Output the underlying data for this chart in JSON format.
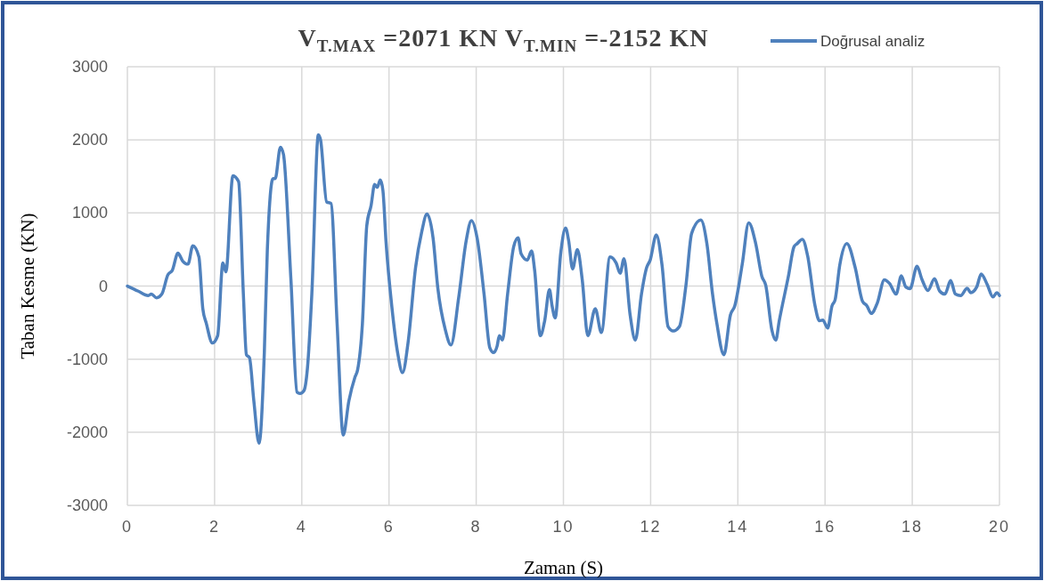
{
  "chart_data": {
    "type": "line",
    "title": "V$_{T.MAX}$ =2071 KN  V$_{T.MIN}$ =-2152 KN",
    "xlabel": "Zaman (S)",
    "ylabel": "Taban Kesme (KN)",
    "xlim": [
      0,
      20
    ],
    "xticks": [
      0,
      2,
      4,
      6,
      8,
      10,
      12,
      14,
      16,
      18,
      20
    ],
    "ylim": [
      -3000,
      3000
    ],
    "yticks": [
      -3000,
      -2000,
      -1000,
      0,
      1000,
      2000,
      3000
    ],
    "grid": true,
    "legend": "top right",
    "series": [
      {
        "name": "Doğrusal analiz",
        "color": "#4f81bd",
        "x": [
          0,
          0.25,
          0.48,
          0.55,
          0.67,
          0.79,
          0.93,
          1.03,
          1.16,
          1.27,
          1.39,
          1.5,
          1.64,
          1.73,
          1.81,
          1.95,
          2.07,
          2.19,
          2.26,
          2.42,
          2.55,
          2.66,
          2.73,
          2.8,
          2.9,
          3.02,
          3.14,
          3.21,
          3.34,
          3.39,
          3.51,
          3.58,
          3.75,
          3.89,
          3.96,
          4.05,
          4.13,
          4.23,
          4.38,
          4.43,
          4.57,
          4.67,
          4.81,
          4.95,
          5.08,
          5.22,
          5.28,
          5.39,
          5.49,
          5.59,
          5.67,
          5.73,
          5.8,
          5.86,
          5.93,
          6.07,
          6.2,
          6.31,
          6.44,
          6.61,
          6.75,
          6.87,
          7.01,
          7.12,
          7.29,
          7.42,
          7.6,
          7.77,
          7.89,
          8.02,
          8.18,
          8.31,
          8.4,
          8.48,
          8.53,
          8.6,
          8.72,
          8.86,
          8.96,
          9.03,
          9.17,
          9.27,
          9.34,
          9.47,
          9.57,
          9.68,
          9.74,
          9.81,
          9.94,
          10.05,
          10.12,
          10.21,
          10.32,
          10.43,
          10.56,
          10.73,
          10.87,
          11.07,
          11.21,
          11.3,
          11.39,
          11.53,
          11.65,
          11.79,
          11.91,
          11.99,
          12.13,
          12.26,
          12.4,
          12.52,
          12.66,
          12.81,
          12.94,
          13.15,
          13.29,
          13.42,
          13.52,
          13.68,
          13.83,
          13.93,
          14.1,
          14.25,
          14.41,
          14.55,
          14.64,
          14.78,
          14.87,
          14.95,
          15.16,
          15.29,
          15.36,
          15.48,
          15.6,
          15.77,
          15.87,
          15.95,
          16.06,
          16.16,
          16.23,
          16.34,
          16.5,
          16.69,
          16.86,
          16.96,
          17.06,
          17.2,
          17.36,
          17.48,
          17.63,
          17.75,
          17.85,
          17.95,
          18.11,
          18.22,
          18.36,
          18.51,
          18.63,
          18.75,
          18.88,
          18.99,
          19.11,
          19.26,
          19.34,
          19.48,
          19.58,
          19.72,
          19.85,
          19.94,
          20
        ],
        "values": [
          0,
          -70,
          -130,
          -110,
          -160,
          -110,
          155,
          215,
          450,
          340,
          300,
          550,
          400,
          -310,
          -510,
          -780,
          -680,
          315,
          195,
          1510,
          1430,
          -110,
          -940,
          -980,
          -1570,
          -2150,
          -920,
          500,
          1470,
          1470,
          1900,
          1800,
          95,
          -1450,
          -1470,
          -1430,
          -1120,
          -110,
          2070,
          2000,
          1150,
          1130,
          -515,
          -2040,
          -1570,
          -1245,
          -1145,
          -515,
          825,
          1105,
          1390,
          1350,
          1450,
          1310,
          620,
          -310,
          -920,
          -1185,
          -760,
          255,
          740,
          985,
          660,
          -30,
          -595,
          -805,
          -150,
          620,
          895,
          660,
          -110,
          -840,
          -910,
          -820,
          -680,
          -740,
          -110,
          540,
          660,
          440,
          355,
          480,
          215,
          -680,
          -475,
          -50,
          -270,
          -435,
          460,
          795,
          620,
          235,
          500,
          95,
          -680,
          -310,
          -635,
          400,
          315,
          175,
          375,
          -395,
          -740,
          -110,
          255,
          355,
          700,
          295,
          -555,
          -615,
          -555,
          10,
          720,
          905,
          580,
          -110,
          -515,
          -940,
          -395,
          -270,
          295,
          865,
          580,
          135,
          10,
          -600,
          -740,
          -475,
          135,
          540,
          580,
          640,
          415,
          -270,
          -475,
          -465,
          -575,
          -270,
          -190,
          295,
          580,
          255,
          -210,
          -270,
          -375,
          -230,
          85,
          35,
          -110,
          140,
          -10,
          -35,
          270,
          95,
          -60,
          100,
          -70,
          -110,
          75,
          -110,
          -130,
          -30,
          -90,
          -10,
          165,
          20,
          -150,
          -90,
          -130
        ]
      }
    ]
  }
}
